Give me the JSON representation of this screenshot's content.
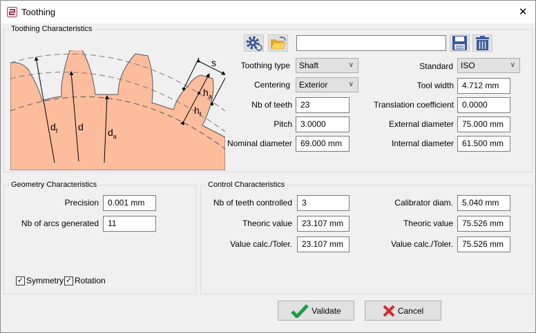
{
  "window": {
    "title": "Toothing",
    "close": "✕"
  },
  "toothing": {
    "title": "Toothing Characteristics",
    "file_value": "",
    "diagram": {
      "df": "d",
      "df_sub": "f",
      "d": "d",
      "da": "d",
      "da_sub": "a",
      "s": "s",
      "ha": "h",
      "ha_sub": "a",
      "hf": "h",
      "hf_sub": "f"
    },
    "toothing_type": {
      "label": "Toothing type",
      "value": "Shaft"
    },
    "centering": {
      "label": "Centering",
      "value": "Exterior"
    },
    "nb_teeth": {
      "label": "Nb of teeth",
      "value": "23"
    },
    "pitch": {
      "label": "Pitch",
      "value": "3.0000"
    },
    "nominal_diameter": {
      "label": "Nominal diameter",
      "value": "69.000 mm"
    },
    "standard": {
      "label": "Standard",
      "value": "ISO"
    },
    "tool_width": {
      "label": "Tool width",
      "value": "4.712 mm"
    },
    "translation": {
      "label": "Translation coefficient",
      "value": "0.0000"
    },
    "external_diameter": {
      "label": "External diameter",
      "value": "75.000 mm"
    },
    "internal_diameter": {
      "label": "Internal diameter",
      "value": "61.500 mm"
    }
  },
  "geometry": {
    "title": "Geometry Characteristics",
    "precision": {
      "label": "Precision",
      "value": "0.001 mm"
    },
    "nb_arcs": {
      "label": "Nb of arcs generated",
      "value": "11"
    },
    "symmetry": {
      "label": "Symmetry",
      "checked": true
    },
    "rotation": {
      "label": "Rotation",
      "checked": true
    }
  },
  "control": {
    "title": "Control Characteristics",
    "nb_teeth_controlled": {
      "label": "Nb of teeth controlled",
      "value": "3"
    },
    "theoric_left": {
      "label": "Theoric value",
      "value": "23.107 mm"
    },
    "calc_left": {
      "label": "Value calc./Toler.",
      "value": "23.107 mm"
    },
    "calibrator": {
      "label": "Calibrator diam.",
      "value": "5.040 mm"
    },
    "theoric_right": {
      "label": "Theoric value",
      "value": "75.526 mm"
    },
    "calc_right": {
      "label": "Value calc./Toler.",
      "value": "75.526 mm"
    }
  },
  "buttons": {
    "validate": "Validate",
    "cancel": "Cancel"
  },
  "colors": {
    "gear_fill": "#fdbd9d",
    "validate_green": "#1e9a48",
    "cancel_red": "#d6252a",
    "icon_blue": "#3a5a98"
  }
}
